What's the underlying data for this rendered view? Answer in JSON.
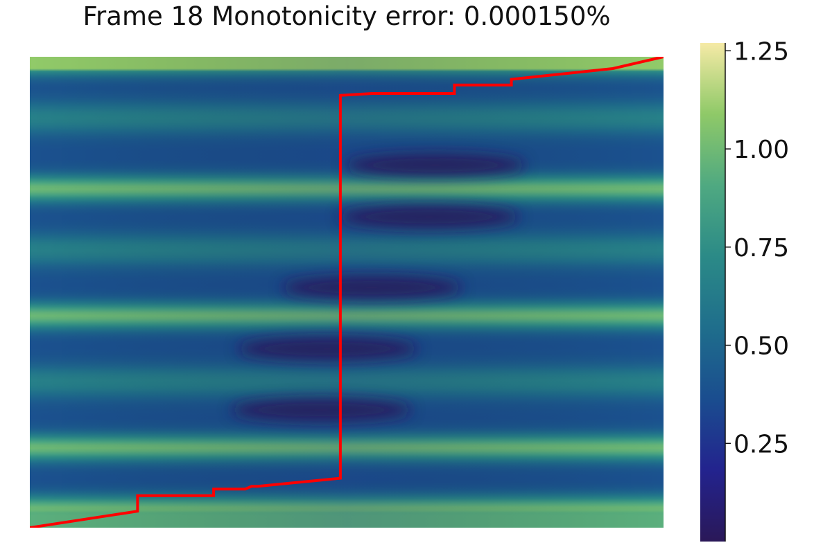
{
  "chart_data": {
    "type": "heatmap",
    "title": "Frame 18   Monotonicity error: 0.000150%",
    "xlabel": "",
    "ylabel": "",
    "axes_visible": false,
    "grid": false,
    "legend": "none",
    "colormap": [
      "#2a1858",
      "#23238e",
      "#1a4d8f",
      "#1f6e8c",
      "#2b8a87",
      "#4fa981",
      "#8fc968",
      "#f6eaa6"
    ],
    "colorbar": {
      "range": [
        0.0,
        1.27
      ],
      "ticks": [
        0.25,
        0.5,
        0.75,
        1.0,
        1.25
      ],
      "tick_labels": [
        "0.25",
        "0.50",
        "0.75",
        "1.00",
        "1.25"
      ]
    },
    "row_profile": {
      "description_units": "cell value at left edge of each row band (top to bottom, y from 1 to 0)",
      "bright_rows_y": [
        0.99,
        0.72,
        0.45,
        0.17,
        0.04
      ],
      "mid_rows_y": [
        0.87,
        0.59,
        0.31
      ]
    },
    "dark_spots": [
      {
        "x": 0.64,
        "y": 0.77
      },
      {
        "x": 0.63,
        "y": 0.66
      },
      {
        "x": 0.54,
        "y": 0.51
      },
      {
        "x": 0.47,
        "y": 0.38
      },
      {
        "x": 0.46,
        "y": 0.25
      }
    ],
    "path": {
      "color": "#ff0000",
      "x": [
        0.0,
        0.17,
        0.17,
        0.29,
        0.29,
        0.34,
        0.35,
        0.36,
        0.49,
        0.49,
        0.54,
        0.67,
        0.67,
        0.76,
        0.76,
        0.8,
        0.92,
        1.0
      ],
      "y": [
        0.0,
        0.035,
        0.068,
        0.068,
        0.082,
        0.082,
        0.088,
        0.088,
        0.105,
        0.918,
        0.922,
        0.922,
        0.94,
        0.94,
        0.952,
        0.958,
        0.975,
        1.0
      ]
    }
  }
}
